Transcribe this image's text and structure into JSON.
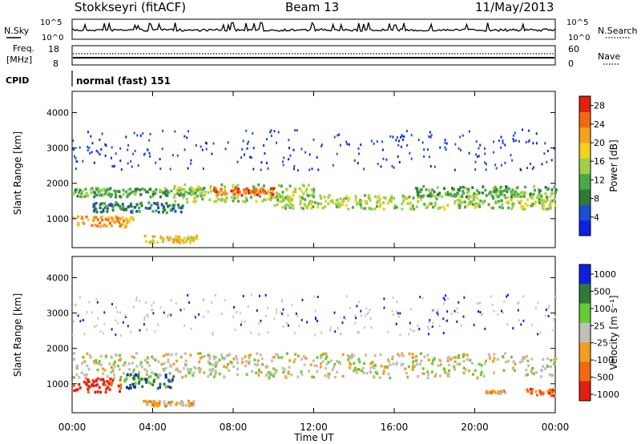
{
  "header": {
    "station": "Stokkseyri (fitACF)",
    "beam": "Beam 13",
    "date": "11/May/2013"
  },
  "labels": {
    "nsky": "N.Sky",
    "nsearch": "N.Search",
    "freq": "Freq.",
    "mhz": "[MHz]",
    "nave": "Nave",
    "cpid": "CPID",
    "cpid_value": "normal (fast) 151",
    "xlabel": "Time UT",
    "ylabel": "Slant Range [km]",
    "power_label": "Power [dB]",
    "velocity_label": "Velocity [m s⁻¹]"
  },
  "noise_ticks": {
    "left": [
      "10^5",
      "10^0"
    ],
    "right": [
      "10^5",
      "10^0"
    ]
  },
  "freq_ticks": {
    "left": [
      "18",
      "8"
    ],
    "right": [
      "60",
      "0"
    ]
  },
  "colors": {
    "power": [
      "#1020e0",
      "#1c4fd0",
      "#2f7a3a",
      "#4aa84a",
      "#9fd048",
      "#f2d020",
      "#f7a020",
      "#f26a10",
      "#e02010"
    ],
    "velocity": [
      "#1020e0",
      "#2f7a3a",
      "#66cc33",
      "#c0c0b8",
      "#f0a020",
      "#f26a10",
      "#e02010"
    ],
    "background_scatter": "#c8c8c0"
  },
  "chart_data": [
    {
      "type": "heatmap",
      "name": "power",
      "xlabel": "Time UT",
      "ylabel": "Slant Range [km]",
      "x_ticks": [
        "00:00",
        "04:00",
        "08:00",
        "12:00",
        "16:00",
        "20:00",
        "00:00"
      ],
      "xlim_hours": [
        0,
        24
      ],
      "y_ticks": [
        1000,
        2000,
        3000,
        4000
      ],
      "ylim": [
        180,
        4600
      ],
      "colorbar": {
        "label": "Power [dB]",
        "ticks": [
          4,
          8,
          12,
          16,
          20,
          24,
          28
        ],
        "range": [
          0,
          30
        ]
      },
      "bands": [
        {
          "t0": 0.0,
          "t1": 6.5,
          "r0": 1650,
          "r1": 1900,
          "level": 3
        },
        {
          "t0": 0.0,
          "t1": 3.0,
          "r0": 800,
          "r1": 1100,
          "level": 6
        },
        {
          "t0": 1.0,
          "t1": 5.5,
          "r0": 1200,
          "r1": 1500,
          "level": 2
        },
        {
          "t0": 5.0,
          "t1": 12.0,
          "r0": 1500,
          "r1": 2000,
          "level": 4
        },
        {
          "t0": 7.0,
          "t1": 10.0,
          "r0": 1700,
          "r1": 1900,
          "level": 7
        },
        {
          "t0": 10.0,
          "t1": 24.0,
          "r0": 1300,
          "r1": 1700,
          "level": 4
        },
        {
          "t0": 17.0,
          "t1": 24.0,
          "r0": 1650,
          "r1": 1950,
          "level": 3
        },
        {
          "t0": 3.5,
          "t1": 6.2,
          "r0": 350,
          "r1": 550,
          "level": 5
        }
      ]
    },
    {
      "type": "heatmap",
      "name": "velocity",
      "xlabel": "Time UT",
      "ylabel": "Slant Range [km]",
      "x_ticks": [
        "00:00",
        "04:00",
        "08:00",
        "12:00",
        "16:00",
        "20:00",
        "00:00"
      ],
      "xlim_hours": [
        0,
        24
      ],
      "y_ticks": [
        1000,
        2000,
        3000,
        4000
      ],
      "ylim": [
        180,
        4600
      ],
      "colorbar": {
        "label": "Velocity [m s⁻¹]",
        "ticks": [
          1000,
          500,
          100,
          25,
          -25,
          -100,
          -500,
          -1000
        ]
      },
      "bands": [
        {
          "t0": 0.0,
          "t1": 24.0,
          "r0": 1200,
          "r1": 1900,
          "level": 3
        },
        {
          "t0": 0.0,
          "t1": 2.5,
          "r0": 800,
          "r1": 1200,
          "level": 6
        },
        {
          "t0": 2.5,
          "t1": 5.0,
          "r0": 900,
          "r1": 1300,
          "level": 1
        },
        {
          "t0": 3.5,
          "t1": 6.0,
          "r0": 400,
          "r1": 550,
          "level": 4
        },
        {
          "t0": 20.5,
          "t1": 21.5,
          "r0": 750,
          "r1": 850,
          "level": 4
        },
        {
          "t0": 22.5,
          "t1": 24.0,
          "r0": 700,
          "r1": 900,
          "level": 5
        }
      ]
    }
  ]
}
